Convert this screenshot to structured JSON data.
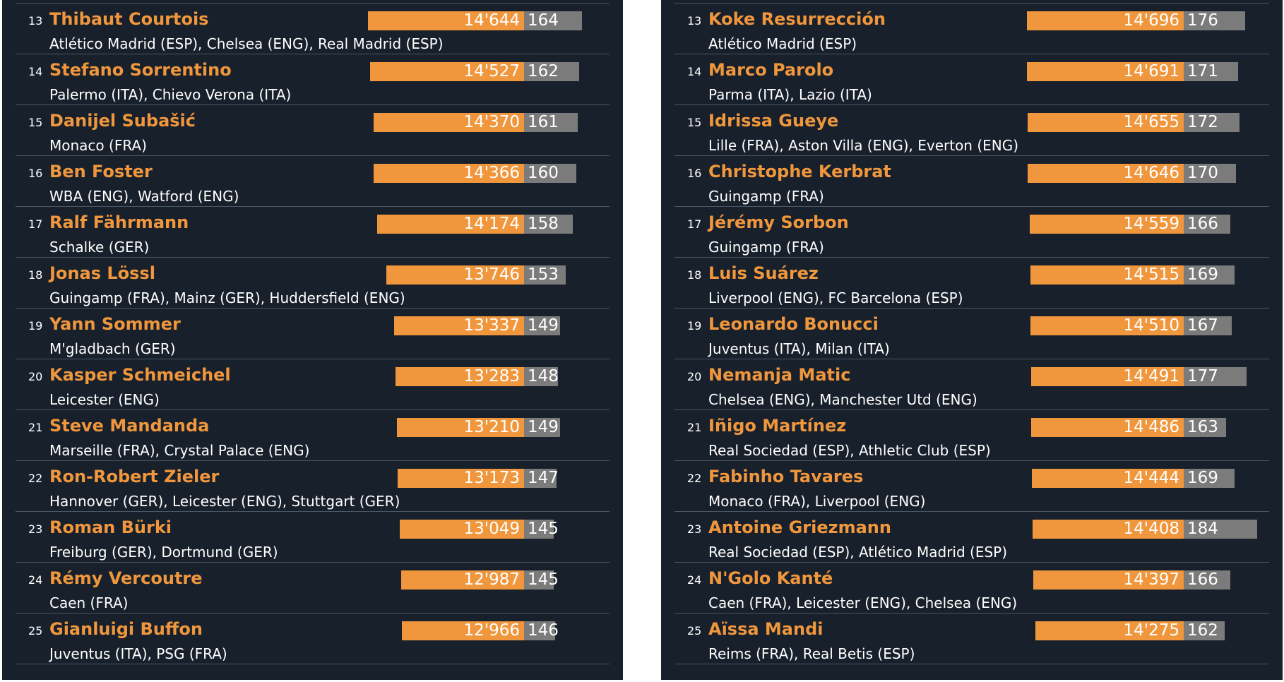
{
  "colors": {
    "background": "#18202b",
    "accent": "#f0973d",
    "secondary_bar": "#7b7b7b",
    "text": "#ffffff",
    "divider": "#4a5562"
  },
  "chart_data": [
    {
      "type": "bar",
      "series": [
        {
          "name": "",
          "values": [
            14644,
            14527,
            14370,
            14366,
            14174,
            13746,
            13337,
            13283,
            13210,
            13173,
            13049,
            12987,
            12966
          ]
        },
        {
          "name": "",
          "values": [
            164,
            162,
            161,
            160,
            158,
            153,
            149,
            148,
            149,
            147,
            145,
            145,
            146
          ]
        }
      ],
      "rows": [
        {
          "rank": "13",
          "name": "Thibaut Courtois",
          "clubs": "Atlético Madrid (ESP), Chelsea (ENG), Real Madrid (ESP)",
          "value_a": 14644,
          "label_a": "14'644",
          "value_b": 164,
          "label_b": "164"
        },
        {
          "rank": "14",
          "name": "Stefano Sorrentino",
          "clubs": "Palermo (ITA), Chievo Verona (ITA)",
          "value_a": 14527,
          "label_a": "14'527",
          "value_b": 162,
          "label_b": "162"
        },
        {
          "rank": "15",
          "name": "Danijel Subašić",
          "clubs": "Monaco (FRA)",
          "value_a": 14370,
          "label_a": "14'370",
          "value_b": 161,
          "label_b": "161"
        },
        {
          "rank": "16",
          "name": "Ben Foster",
          "clubs": "WBA (ENG), Watford (ENG)",
          "value_a": 14366,
          "label_a": "14'366",
          "value_b": 160,
          "label_b": "160"
        },
        {
          "rank": "17",
          "name": "Ralf Fährmann",
          "clubs": "Schalke (GER)",
          "value_a": 14174,
          "label_a": "14'174",
          "value_b": 158,
          "label_b": "158"
        },
        {
          "rank": "18",
          "name": "Jonas Lössl",
          "clubs": "Guingamp (FRA), Mainz (GER), Huddersfield (ENG)",
          "value_a": 13746,
          "label_a": "13'746",
          "value_b": 153,
          "label_b": "153"
        },
        {
          "rank": "19",
          "name": "Yann Sommer",
          "clubs": "M'gladbach (GER)",
          "value_a": 13337,
          "label_a": "13'337",
          "value_b": 149,
          "label_b": "149"
        },
        {
          "rank": "20",
          "name": "Kasper Schmeichel",
          "clubs": "Leicester (ENG)",
          "value_a": 13283,
          "label_a": "13'283",
          "value_b": 148,
          "label_b": "148"
        },
        {
          "rank": "21",
          "name": "Steve Mandanda",
          "clubs": "Marseille (FRA), Crystal Palace (ENG)",
          "value_a": 13210,
          "label_a": "13'210",
          "value_b": 149,
          "label_b": "149"
        },
        {
          "rank": "22",
          "name": "Ron-Robert Zieler",
          "clubs": "Hannover (GER), Leicester (ENG), Stuttgart (GER)",
          "value_a": 13173,
          "label_a": "13'173",
          "value_b": 147,
          "label_b": "147"
        },
        {
          "rank": "23",
          "name": "Roman Bürki",
          "clubs": "Freiburg (GER), Dortmund (GER)",
          "value_a": 13049,
          "label_a": "13'049",
          "value_b": 145,
          "label_b": "145"
        },
        {
          "rank": "24",
          "name": "Rémy Vercoutre",
          "clubs": "Caen (FRA)",
          "value_a": 12987,
          "label_a": "12'987",
          "value_b": 145,
          "label_b": "145"
        },
        {
          "rank": "25",
          "name": "Gianluigi Buffon",
          "clubs": "Juventus (ITA), PSG (FRA)",
          "value_a": 12966,
          "label_a": "12'966",
          "value_b": 146,
          "label_b": "146"
        }
      ]
    },
    {
      "type": "bar",
      "series": [
        {
          "name": "",
          "values": [
            14696,
            14691,
            14655,
            14646,
            14559,
            14515,
            14510,
            14491,
            14486,
            14444,
            14408,
            14397,
            14275
          ]
        },
        {
          "name": "",
          "values": [
            176,
            171,
            172,
            170,
            166,
            169,
            167,
            177,
            163,
            169,
            184,
            166,
            162
          ]
        }
      ],
      "rows": [
        {
          "rank": "13",
          "name": "Koke Resurrección",
          "clubs": "Atlético Madrid (ESP)",
          "value_a": 14696,
          "label_a": "14'696",
          "value_b": 176,
          "label_b": "176"
        },
        {
          "rank": "14",
          "name": "Marco Parolo",
          "clubs": "Parma (ITA), Lazio (ITA)",
          "value_a": 14691,
          "label_a": "14'691",
          "value_b": 171,
          "label_b": "171"
        },
        {
          "rank": "15",
          "name": "Idrissa Gueye",
          "clubs": "Lille (FRA), Aston Villa (ENG), Everton (ENG)",
          "value_a": 14655,
          "label_a": "14'655",
          "value_b": 172,
          "label_b": "172"
        },
        {
          "rank": "16",
          "name": "Christophe Kerbrat",
          "clubs": "Guingamp (FRA)",
          "value_a": 14646,
          "label_a": "14'646",
          "value_b": 170,
          "label_b": "170"
        },
        {
          "rank": "17",
          "name": "Jérémy Sorbon",
          "clubs": "Guingamp (FRA)",
          "value_a": 14559,
          "label_a": "14'559",
          "value_b": 166,
          "label_b": "166"
        },
        {
          "rank": "18",
          "name": "Luis Suárez",
          "clubs": "Liverpool (ENG), FC Barcelona (ESP)",
          "value_a": 14515,
          "label_a": "14'515",
          "value_b": 169,
          "label_b": "169"
        },
        {
          "rank": "19",
          "name": "Leonardo Bonucci",
          "clubs": "Juventus (ITA), Milan (ITA)",
          "value_a": 14510,
          "label_a": "14'510",
          "value_b": 167,
          "label_b": "167"
        },
        {
          "rank": "20",
          "name": "Nemanja Matic",
          "clubs": "Chelsea (ENG), Manchester Utd (ENG)",
          "value_a": 14491,
          "label_a": "14'491",
          "value_b": 177,
          "label_b": "177"
        },
        {
          "rank": "21",
          "name": "Iñigo Martínez",
          "clubs": "Real Sociedad (ESP), Athletic Club (ESP)",
          "value_a": 14486,
          "label_a": "14'486",
          "value_b": 163,
          "label_b": "163"
        },
        {
          "rank": "22",
          "name": "Fabinho Tavares",
          "clubs": "Monaco (FRA), Liverpool (ENG)",
          "value_a": 14444,
          "label_a": "14'444",
          "value_b": 169,
          "label_b": "169"
        },
        {
          "rank": "23",
          "name": "Antoine Griezmann",
          "clubs": "Real Sociedad (ESP), Atlético Madrid (ESP)",
          "value_a": 14408,
          "label_a": "14'408",
          "value_b": 184,
          "label_b": "184"
        },
        {
          "rank": "24",
          "name": "N'Golo Kanté",
          "clubs": "Caen (FRA), Leicester (ENG), Chelsea (ENG)",
          "value_a": 14397,
          "label_a": "14'397",
          "value_b": 166,
          "label_b": "166"
        },
        {
          "rank": "25",
          "name": "Aïssa Mandi",
          "clubs": "Reims (FRA), Real Betis (ESP)",
          "value_a": 14275,
          "label_a": "14'275",
          "value_b": 162,
          "label_b": "162"
        }
      ]
    }
  ]
}
